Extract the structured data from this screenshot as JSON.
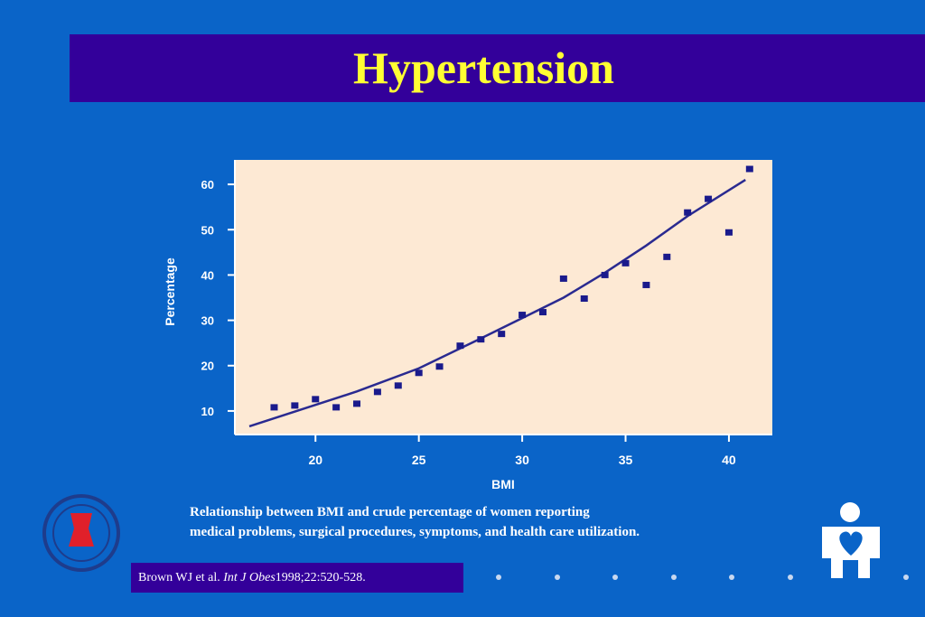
{
  "slide": {
    "title": "Hypertension",
    "caption_line1": "Relationship between BMI and crude percentage of women reporting",
    "caption_line2": "medical problems, surgical procedures, symptoms, and health care utilization.",
    "citation_prefix": "Brown WJ et al. ",
    "citation_journal": "Int J Obes",
    "citation_suffix": "1998;22:520-528.",
    "colors": {
      "background": "#0a64c8",
      "title_bar": "#33009a",
      "title_text": "#ffff33",
      "plot_bg": "#fde9d4",
      "marker": "#1a1a8c"
    }
  },
  "chart_data": {
    "type": "scatter",
    "xlabel": "BMI",
    "ylabel": "Percentage",
    "xlim": [
      16.1,
      42.1
    ],
    "ylim": [
      4.8,
      65.4
    ],
    "xticks": [
      20,
      25,
      30,
      35,
      40
    ],
    "yticks": [
      10,
      20,
      30,
      40,
      50,
      60
    ],
    "grid": false,
    "points": {
      "x": [
        18,
        19,
        20,
        21,
        22,
        23,
        24,
        25,
        26,
        27,
        28,
        29,
        30,
        31,
        32,
        33,
        34,
        35,
        36,
        37,
        38,
        39,
        40,
        41
      ],
      "y": [
        10.8,
        11.2,
        12.6,
        10.8,
        11.6,
        14.2,
        15.6,
        18.4,
        19.8,
        24.4,
        25.8,
        27.0,
        31.2,
        31.8,
        39.2,
        34.8,
        40.0,
        42.6,
        37.8,
        44.0,
        53.8,
        56.8,
        49.4,
        63.4
      ]
    },
    "fit_line": {
      "x": [
        16.8,
        22,
        25,
        28,
        30,
        32,
        34,
        36,
        38,
        40.8
      ],
      "y": [
        6.6,
        14.3,
        19.4,
        26,
        30.5,
        35,
        40.5,
        46.5,
        53,
        61
      ]
    }
  }
}
